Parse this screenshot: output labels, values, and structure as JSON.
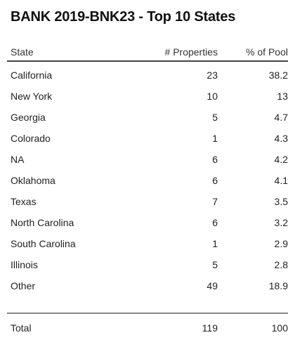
{
  "title": "BANK 2019-BNK23 - Top 10 States",
  "table": {
    "columns": [
      "State",
      "# Properties",
      "% of Pool"
    ],
    "rows": [
      {
        "state": "California",
        "properties": "23",
        "pct": "38.2"
      },
      {
        "state": "New York",
        "properties": "10",
        "pct": "13"
      },
      {
        "state": "Georgia",
        "properties": "5",
        "pct": "4.7"
      },
      {
        "state": "Colorado",
        "properties": "1",
        "pct": "4.3"
      },
      {
        "state": "NA",
        "properties": "6",
        "pct": "4.2"
      },
      {
        "state": "Oklahoma",
        "properties": "6",
        "pct": "4.1"
      },
      {
        "state": "Texas",
        "properties": "7",
        "pct": "3.5"
      },
      {
        "state": "North Carolina",
        "properties": "6",
        "pct": "3.2"
      },
      {
        "state": "South Carolina",
        "properties": "1",
        "pct": "2.9"
      },
      {
        "state": "Illinois",
        "properties": "5",
        "pct": "2.8"
      },
      {
        "state": "Other",
        "properties": "49",
        "pct": "18.9"
      }
    ],
    "total": {
      "label": "Total",
      "properties": "119",
      "pct": "100"
    }
  }
}
